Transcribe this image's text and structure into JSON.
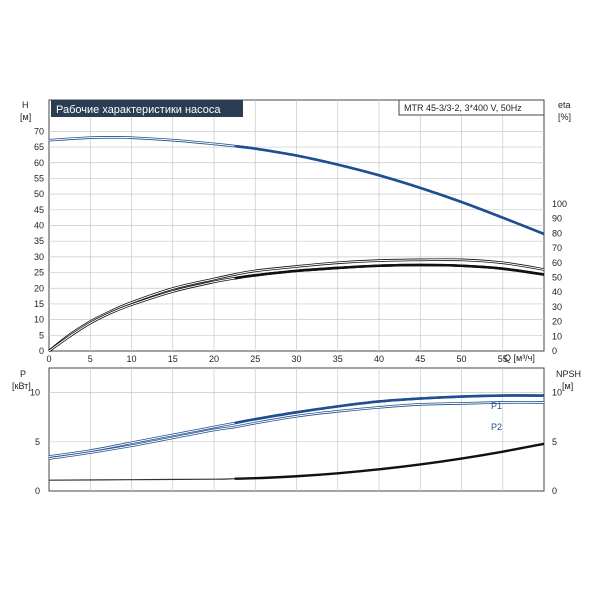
{
  "chart_data": [
    {
      "type": "line",
      "panel": "upper",
      "title": "Рабочие характеристики насоса",
      "model": "MTR 45-3/3-2, 3*400 V, 50Hz",
      "xlabel": "Q [м³/ч]",
      "x_unit_prefix": "Q",
      "x_unit": "[м³/ч]",
      "ylabel_left": "H",
      "ylabel_left_unit": "[м]",
      "ylabel_right": "eta",
      "ylabel_right_unit": "[%]",
      "xlim": [
        0,
        60
      ],
      "xticks": [
        0,
        5,
        10,
        15,
        20,
        25,
        30,
        35,
        40,
        45,
        50,
        55
      ],
      "ylim_left": [
        0,
        80
      ],
      "yticks_left": [
        0,
        5,
        10,
        15,
        20,
        25,
        30,
        35,
        40,
        45,
        50,
        55,
        60,
        65,
        70
      ],
      "yticks_right": [
        0,
        10,
        20,
        30,
        40,
        50,
        60,
        70,
        80,
        90,
        100
      ],
      "grid": true,
      "series": [
        {
          "name": "H",
          "axis": "left",
          "color": "#1f4f8f",
          "x": [
            0,
            5,
            8,
            10,
            15,
            20,
            22.5,
            25,
            30,
            35,
            40,
            45,
            50,
            55,
            60
          ],
          "values": [
            67.2,
            68.0,
            68.1,
            68.0,
            67.2,
            66.0,
            65.3,
            64.5,
            62.3,
            59.4,
            56.0,
            52.0,
            47.5,
            42.5,
            37.3
          ]
        },
        {
          "axis": "right",
          "color": "#111111",
          "x": [
            0,
            2.5,
            5,
            7.5,
            10,
            15,
            20,
            22.5,
            25,
            30,
            35,
            40,
            45,
            50,
            55,
            60
          ],
          "values": [
            0,
            11,
            20,
            27,
            33,
            42.5,
            49,
            52,
            54.5,
            57.5,
            60,
            61.5,
            62,
            62,
            60,
            55.5
          ]
        },
        {
          "axis": "right",
          "color": "#111111",
          "x": [
            0,
            2.5,
            5,
            7.5,
            10,
            15,
            20,
            22.5,
            25,
            30,
            35,
            40,
            45,
            50,
            55,
            60
          ],
          "values": [
            0,
            10,
            19,
            26,
            31.5,
            40.5,
            47,
            49.5,
            51.5,
            54.5,
            56.5,
            58,
            58.5,
            58,
            56,
            52
          ]
        }
      ]
    },
    {
      "type": "line",
      "panel": "lower",
      "ylabel_left": "P",
      "ylabel_left_unit": "[кВт]",
      "ylabel_right": "NPSH",
      "ylabel_right_unit": "[м]",
      "xlim": [
        0,
        60
      ],
      "ylim_left": [
        0,
        12.5
      ],
      "yticks_left": [
        0,
        5,
        10
      ],
      "yticks_right": [
        0,
        5,
        10
      ],
      "grid": true,
      "series": [
        {
          "name": "P1",
          "axis": "left",
          "color": "#1f4f8f",
          "x": [
            0,
            5,
            10,
            15,
            20,
            22.5,
            25,
            30,
            35,
            40,
            45,
            50,
            55,
            60
          ],
          "values": [
            3.5,
            4.1,
            4.9,
            5.7,
            6.5,
            6.9,
            7.3,
            8.0,
            8.6,
            9.1,
            9.4,
            9.6,
            9.7,
            9.7
          ]
        },
        {
          "name": "P2",
          "axis": "left",
          "color": "#1f4f8f",
          "x": [
            0,
            5,
            10,
            15,
            20,
            22.5,
            25,
            30,
            35,
            40,
            45,
            50,
            55,
            60
          ],
          "values": [
            3.3,
            3.9,
            4.6,
            5.4,
            6.2,
            6.5,
            6.9,
            7.6,
            8.1,
            8.5,
            8.8,
            8.9,
            9.0,
            9.0
          ]
        },
        {
          "name": "NPSH",
          "axis": "right",
          "color": "#111111",
          "x": [
            0,
            10,
            20,
            22.5,
            25,
            30,
            35,
            40,
            45,
            50,
            55,
            60
          ],
          "values": [
            1.1,
            1.15,
            1.2,
            1.25,
            1.3,
            1.5,
            1.8,
            2.2,
            2.7,
            3.3,
            4.0,
            4.8
          ]
        }
      ]
    }
  ]
}
